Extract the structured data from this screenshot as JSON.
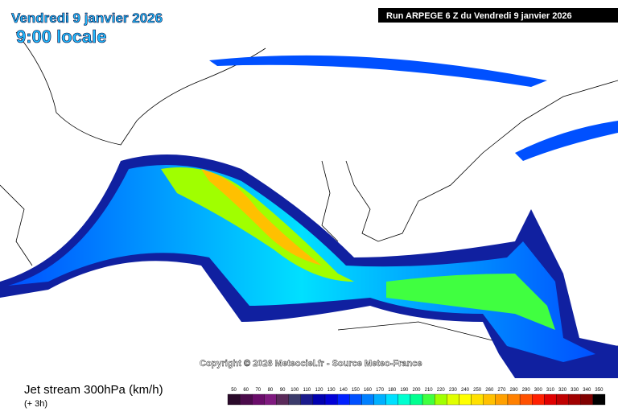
{
  "header": {
    "date": "Vendredi 9 janvier 2026",
    "time": "9:00 locale",
    "run": "Run ARPEGE 6 Z du Vendredi 9 janvier 2026"
  },
  "map": {
    "copyright": "Copyright © 2026 Meteociel.fr - Source Meteo-France"
  },
  "footer": {
    "title": "Jet stream 300hPa (km/h)",
    "step": "(+ 3h)"
  },
  "scale": {
    "values": [
      50,
      60,
      70,
      80,
      90,
      100,
      110,
      120,
      130,
      140,
      150,
      160,
      170,
      180,
      190,
      200,
      210,
      220,
      230,
      240,
      250,
      260,
      270,
      280,
      290,
      300,
      310,
      320,
      330,
      340,
      350
    ],
    "colors": [
      "#2a0a2a",
      "#4b0b4b",
      "#6a0d6a",
      "#7f1a7f",
      "#5a2a5a",
      "#3b3b6b",
      "#1a1a8c",
      "#0000b0",
      "#0000d6",
      "#0020ff",
      "#0050ff",
      "#0080ff",
      "#00b0ff",
      "#00e0ff",
      "#00ffd0",
      "#00ff90",
      "#40ff40",
      "#a0ff00",
      "#e0ff00",
      "#ffff00",
      "#ffe000",
      "#ffc000",
      "#ffa000",
      "#ff8000",
      "#ff5000",
      "#ff2000",
      "#e00000",
      "#c00000",
      "#a00000",
      "#800000",
      "#000000"
    ]
  }
}
